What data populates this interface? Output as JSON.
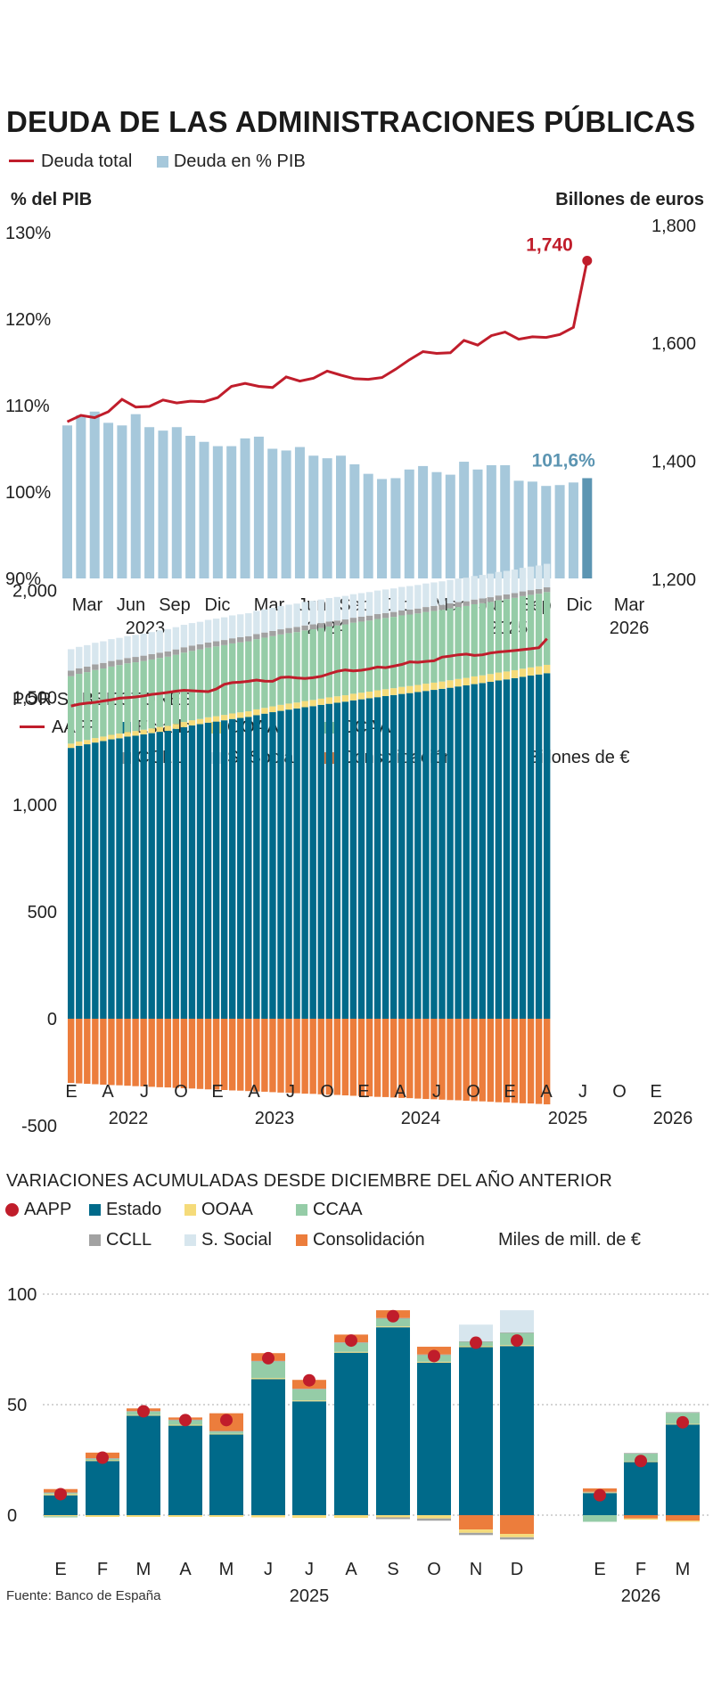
{
  "title": "DEUDA DE LAS ADMINISTRACIONES PÚBLICAS",
  "source": "Fuente: Banco de España",
  "colors": {
    "deuda_total": "#c01d2b",
    "deuda_pib": "#a6c8db",
    "deuda_pib_last": "#5c95b2",
    "aapp": "#c01d2b",
    "estado": "#006a8a",
    "ooaa": "#f5db7a",
    "ccaa": "#95cca7",
    "ccll": "#a2a2a2",
    "ssocial": "#d7e6ee",
    "consolidacion": "#ec7d3c"
  },
  "chart1": {
    "legend": [
      "Deuda total",
      "Deuda en % PIB"
    ],
    "left_axis_title": "% del PIB",
    "right_axis_title": "Billones de euros",
    "left_ticks": [
      "130%",
      "120%",
      "110%",
      "100%",
      "90%"
    ],
    "right_ticks": [
      "1,800",
      "1,600",
      "1,400",
      "1,200"
    ],
    "x_months": [
      "Mar",
      "Jun",
      "Sep",
      "Dic",
      "Mar",
      "Jun",
      "Sep",
      "Dic",
      "Mar",
      "Jun",
      "Sep",
      "Dic",
      "Mar"
    ],
    "x_years": [
      "2023",
      "2024",
      "2025",
      "2026"
    ],
    "last_debt_label": "1,740",
    "last_pib_label": "101,6%"
  },
  "chart2": {
    "subtitle": "POR SUBSECTORES",
    "legend": [
      "AAPP",
      "Estado",
      "OOAA",
      "CCAA",
      "CCLL",
      "S. Social",
      "Consolidación"
    ],
    "unit": "Billones de €",
    "y_ticks": [
      "2,000",
      "1,500",
      "1,000",
      "500",
      "0",
      "-500"
    ],
    "x_months": [
      "E",
      "A",
      "J",
      "O",
      "E",
      "A",
      "J",
      "O",
      "E",
      "A",
      "J",
      "O",
      "E",
      "A",
      "J",
      "O",
      "E"
    ],
    "x_years": [
      "2022",
      "2023",
      "2024",
      "2025",
      "2026"
    ]
  },
  "chart3": {
    "subtitle": "VARIACIONES ACUMULADAS DESDE DICIEMBRE DEL AÑO ANTERIOR",
    "legend": [
      "AAPP",
      "Estado",
      "OOAA",
      "CCAA",
      "CCLL",
      "S. Social",
      "Consolidación"
    ],
    "unit": "Miles de mill. de €",
    "y_ticks": [
      "100",
      "50",
      "0"
    ],
    "x_months": [
      "E",
      "F",
      "M",
      "A",
      "M",
      "J",
      "J",
      "A",
      "S",
      "O",
      "N",
      "D",
      "E",
      "F",
      "M"
    ],
    "x_years": [
      "2025",
      "2026"
    ]
  },
  "chart_data": [
    {
      "type": "bar",
      "title": "DEUDA DE LAS ADMINISTRACIONES PÚBLICAS",
      "ylabel": "% del PIB",
      "y2label": "Billones de euros",
      "ylim": [
        90,
        130
      ],
      "y2lim": [
        1200,
        1800
      ],
      "series": [
        {
          "name": "Deuda en % PIB",
          "type": "bar",
          "values": [
            107.7,
            108.9,
            109.3,
            108.0,
            107.7,
            109.0,
            107.5,
            107.1,
            107.5,
            106.5,
            105.8,
            105.3,
            105.3,
            106.2,
            106.4,
            105.0,
            104.8,
            105.2,
            104.2,
            103.9,
            104.2,
            103.2,
            102.1,
            101.5,
            101.6,
            102.6,
            103.0,
            102.3,
            102.0,
            103.5,
            102.6,
            103.1,
            103.1,
            101.3,
            101.2,
            100.7,
            100.8,
            101.1,
            101.6
          ]
        },
        {
          "name": "Deuda total",
          "type": "line",
          "values": [
            1467,
            1478,
            1474,
            1484,
            1505,
            1492,
            1493,
            1504,
            1499,
            1502,
            1501,
            1508,
            1527,
            1532,
            1527,
            1525,
            1543,
            1536,
            1541,
            1553,
            1546,
            1540,
            1539,
            1542,
            1556,
            1572,
            1586,
            1583,
            1584,
            1605,
            1597,
            1613,
            1619,
            1607,
            1611,
            1610,
            1615,
            1627,
            1740
          ]
        }
      ]
    },
    {
      "type": "bar",
      "title": "POR SUBSECTORES",
      "ylabel": "Billones de €",
      "ylim": [
        -500,
        2000
      ],
      "stacked": true,
      "series": [
        {
          "name": "Estado",
          "values": [
            1265,
            1275,
            1282,
            1290,
            1297,
            1305,
            1310,
            1318,
            1322,
            1328,
            1334,
            1340,
            1345,
            1354,
            1362,
            1370,
            1376,
            1383,
            1388,
            1394,
            1400,
            1405,
            1410,
            1418,
            1425,
            1432,
            1438,
            1444,
            1449,
            1455,
            1460,
            1466,
            1471,
            1476,
            1481,
            1487,
            1492,
            1497,
            1502,
            1507,
            1512,
            1517,
            1521,
            1526,
            1531,
            1536,
            1541,
            1546,
            1552,
            1557,
            1563,
            1568,
            1574,
            1580,
            1585,
            1591,
            1597,
            1603,
            1608,
            1614
          ]
        },
        {
          "name": "OOAA",
          "values": [
            20,
            20,
            20,
            21,
            21,
            21,
            22,
            22,
            22,
            22,
            22,
            23,
            23,
            23,
            24,
            24,
            24,
            25,
            25,
            25,
            26,
            26,
            26,
            27,
            27,
            27,
            28,
            28,
            28,
            29,
            29,
            29,
            30,
            30,
            30,
            31,
            31,
            31,
            32,
            32,
            32,
            33,
            33,
            33,
            34,
            34,
            34,
            35,
            35,
            35,
            36,
            36,
            36,
            37,
            37,
            37,
            38,
            38,
            38,
            39
          ]
        },
        {
          "name": "CCAA",
          "values": [
            315,
            316,
            317,
            318,
            318,
            319,
            320,
            320,
            321,
            321,
            322,
            322,
            323,
            323,
            324,
            324,
            325,
            325,
            326,
            326,
            327,
            327,
            327,
            328,
            328,
            328,
            329,
            329,
            329,
            330,
            330,
            330,
            331,
            331,
            331,
            332,
            332,
            332,
            333,
            333,
            333,
            334,
            334,
            334,
            335,
            335,
            335,
            336,
            336,
            336,
            337,
            337,
            337,
            338,
            338,
            338,
            339,
            339,
            339,
            340
          ]
        },
        {
          "name": "CCLL",
          "values": [
            26,
            26,
            26,
            26,
            26,
            26,
            25,
            25,
            25,
            25,
            25,
            25,
            25,
            25,
            25,
            25,
            24,
            24,
            24,
            24,
            24,
            24,
            24,
            24,
            24,
            24,
            24,
            24,
            24,
            23,
            23,
            23,
            23,
            23,
            23,
            23,
            23,
            23,
            23,
            23,
            23,
            23,
            23,
            23,
            23,
            23,
            23,
            23,
            23,
            22,
            22,
            22,
            22,
            22,
            22,
            22,
            22,
            22,
            22,
            22
          ]
        },
        {
          "name": "S. Social",
          "values": [
            100,
            100,
            100,
            101,
            101,
            102,
            102,
            102,
            103,
            103,
            103,
            104,
            104,
            104,
            105,
            105,
            105,
            106,
            106,
            106,
            107,
            107,
            107,
            108,
            108,
            108,
            109,
            109,
            109,
            110,
            110,
            110,
            110,
            110,
            110,
            110,
            110,
            110,
            110,
            110,
            110,
            110,
            110,
            110,
            110,
            110,
            110,
            110,
            110,
            110,
            110,
            110,
            110,
            110,
            110,
            110,
            110,
            110,
            110,
            110
          ]
        },
        {
          "name": "Consolidación",
          "values": [
            -300,
            -302,
            -304,
            -306,
            -308,
            -310,
            -311,
            -313,
            -315,
            -316,
            -318,
            -320,
            -321,
            -323,
            -325,
            -326,
            -328,
            -330,
            -331,
            -333,
            -335,
            -336,
            -338,
            -340,
            -341,
            -343,
            -345,
            -346,
            -348,
            -350,
            -351,
            -353,
            -355,
            -356,
            -358,
            -360,
            -361,
            -363,
            -365,
            -366,
            -368,
            -370,
            -371,
            -373,
            -375,
            -376,
            -378,
            -380,
            -381,
            -383,
            -385,
            -386,
            -388,
            -390,
            -391,
            -393,
            -395,
            -396,
            -398,
            -400
          ]
        },
        {
          "name": "AAPP",
          "type": "line",
          "values": [
            1461,
            1469,
            1474,
            1478,
            1484,
            1490,
            1497,
            1500,
            1503,
            1508,
            1515,
            1519,
            1524,
            1530,
            1534,
            1532,
            1530,
            1528,
            1540,
            1562,
            1570,
            1572,
            1576,
            1582,
            1577,
            1576,
            1594,
            1596,
            1592,
            1589,
            1593,
            1599,
            1611,
            1623,
            1629,
            1625,
            1628,
            1634,
            1643,
            1640,
            1647,
            1655,
            1667,
            1665,
            1669,
            1672,
            1689,
            1694,
            1700,
            1703,
            1697,
            1700,
            1708,
            1713,
            1716,
            1720,
            1724,
            1728,
            1733,
            1775
          ]
        }
      ]
    },
    {
      "type": "bar",
      "title": "VARIACIONES ACUMULADAS DESDE DICIEMBRE DEL AÑO ANTERIOR",
      "ylabel": "Miles de mill. de €",
      "ylim": [
        -12,
        100
      ],
      "stacked": true,
      "categories": [
        "E 2025",
        "F 2025",
        "M 2025",
        "A 2025",
        "M 2025",
        "J 2025",
        "J 2025",
        "A 2025",
        "S 2025",
        "O 2025",
        "N 2025",
        "D 2025",
        "E 2026",
        "F 2026",
        "M 2026"
      ],
      "series": [
        {
          "name": "Estado",
          "values": [
            9,
            24.5,
            45,
            40.5,
            36.5,
            61.5,
            51.5,
            73.5,
            85,
            69,
            76,
            76.5,
            10,
            24,
            41
          ]
        },
        {
          "name": "OOAA",
          "values": [
            0.5,
            0.3,
            0.3,
            0.4,
            0.3,
            0.5,
            0.4,
            0.4,
            0.4,
            0.4,
            0.4,
            0.4,
            0.3,
            0.3,
            0.3
          ]
        },
        {
          "name": "CCAA",
          "values": [
            0.5,
            0.7,
            1.5,
            2.0,
            1.0,
            7.5,
            5.0,
            4.0,
            3.5,
            3.0,
            2.0,
            5.5,
            0.0,
            3.5,
            5.0
          ]
        },
        {
          "name": "CCLL",
          "values": [
            0.3,
            0.3,
            0.3,
            0.3,
            0.3,
            0.3,
            0.3,
            0.3,
            0.3,
            0.3,
            0.3,
            0.3,
            0.3,
            0.3,
            0.3
          ]
        },
        {
          "name": "S. Social",
          "values": [
            0,
            0,
            0,
            0,
            0,
            0,
            0,
            0,
            0,
            0,
            7.5,
            10,
            0,
            0,
            0
          ]
        },
        {
          "name": "Consolidación",
          "values": [
            1.5,
            2.5,
            1.2,
            1.0,
            8.0,
            3.5,
            4.0,
            3.5,
            3.5,
            3.5,
            -6.5,
            -8.5,
            1.5,
            -1.5,
            -2.5
          ]
        },
        {
          "name": "OOAA neg",
          "values": [
            -0.5,
            -0.8,
            -0.8,
            -0.8,
            -0.8,
            -1.0,
            -1.2,
            -1.2,
            -1.0,
            -1.5,
            -1.5,
            -1.5,
            0,
            -0.5,
            -0.5
          ]
        },
        {
          "name": "CCLL neg",
          "values": [
            0,
            0,
            0,
            0,
            0,
            0,
            0,
            0,
            -0.8,
            -1.0,
            -1.0,
            -1.0,
            0,
            0,
            0
          ]
        },
        {
          "name": "CCAA neg",
          "values": [
            -0.5,
            0,
            0,
            0,
            0,
            0,
            0,
            0,
            0,
            0,
            0,
            0,
            -3.0,
            0,
            0
          ]
        },
        {
          "name": "AAPP",
          "type": "scatter",
          "values": [
            9.5,
            26,
            47,
            43,
            43,
            71,
            61,
            79,
            90,
            72,
            78,
            79,
            9,
            24.5,
            42
          ]
        }
      ]
    }
  ]
}
